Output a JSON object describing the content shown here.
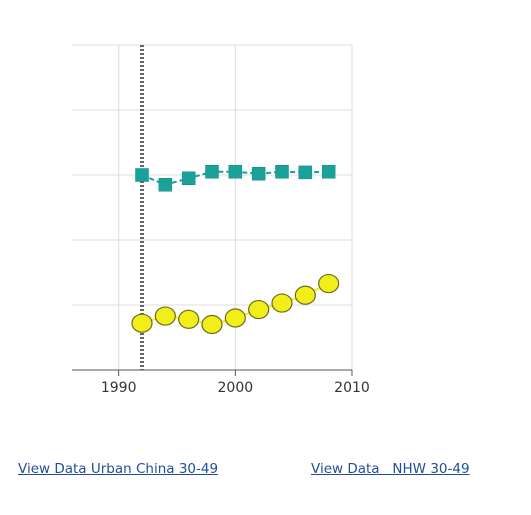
{
  "chart_data": {
    "type": "line",
    "xlim": [
      1986,
      2010
    ],
    "ylim": [
      0,
      5
    ],
    "x_ticks": [
      1990,
      2000,
      2010
    ],
    "grid": true,
    "reference_line_x": 1992,
    "series": [
      {
        "marker": "square",
        "color": "#1aa19a",
        "x": [
          1992,
          1994,
          1996,
          1998,
          2000,
          2002,
          2004,
          2006,
          2008
        ],
        "values": [
          3.0,
          2.85,
          2.95,
          3.05,
          3.05,
          3.02,
          3.05,
          3.04,
          3.05
        ]
      },
      {
        "marker": "circle",
        "color": "#f2ee1a",
        "x": [
          1992,
          1994,
          1996,
          1998,
          2000,
          2002,
          2004,
          2006,
          2008
        ],
        "values": [
          0.72,
          0.83,
          0.78,
          0.7,
          0.8,
          0.93,
          1.03,
          1.15,
          1.33
        ]
      }
    ]
  },
  "links": [
    {
      "label": "View Data Urban China 30-49"
    },
    {
      "label": "View Data   NHW 30-49"
    }
  ]
}
